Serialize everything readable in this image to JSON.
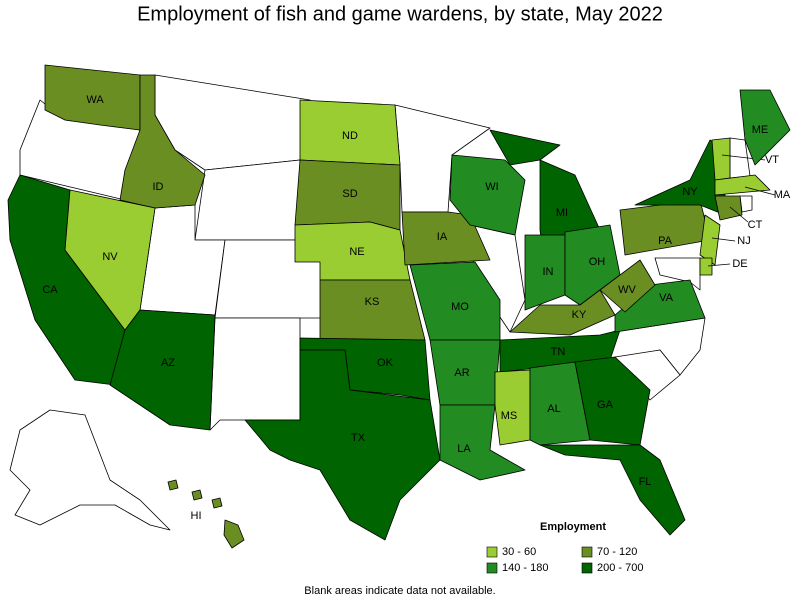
{
  "title": "Employment of fish and game wardens, by state, May 2022",
  "legend": {
    "title": "Employment",
    "items": [
      {
        "label": "30 - 60",
        "color": "#9acd32"
      },
      {
        "label": "70 - 120",
        "color": "#6b8e23"
      },
      {
        "label": "140 - 180",
        "color": "#228b22"
      },
      {
        "label": "200 - 700",
        "color": "#006400"
      }
    ]
  },
  "states": [
    {
      "label": "WA",
      "color": "#6b8e23"
    },
    {
      "label": "ID",
      "color": "#6b8e23"
    },
    {
      "label": "CA",
      "color": "#006400"
    },
    {
      "label": "NV",
      "color": "#9acd32"
    },
    {
      "label": "AZ",
      "color": "#006400"
    },
    {
      "label": "ND",
      "color": "#9acd32"
    },
    {
      "label": "SD",
      "color": "#6b8e23"
    },
    {
      "label": "NE",
      "color": "#9acd32"
    },
    {
      "label": "KS",
      "color": "#6b8e23"
    },
    {
      "label": "OK",
      "color": "#006400"
    },
    {
      "label": "TX",
      "color": "#006400"
    },
    {
      "label": "IA",
      "color": "#6b8e23"
    },
    {
      "label": "MO",
      "color": "#228b22"
    },
    {
      "label": "AR",
      "color": "#228b22"
    },
    {
      "label": "LA",
      "color": "#228b22"
    },
    {
      "label": "WI",
      "color": "#228b22"
    },
    {
      "label": "MI",
      "color": "#006400"
    },
    {
      "label": "IN",
      "color": "#228b22"
    },
    {
      "label": "OH",
      "color": "#228b22"
    },
    {
      "label": "KY",
      "color": "#6b8e23"
    },
    {
      "label": "TN",
      "color": "#006400"
    },
    {
      "label": "MS",
      "color": "#9acd32"
    },
    {
      "label": "AL",
      "color": "#228b22"
    },
    {
      "label": "GA",
      "color": "#006400"
    },
    {
      "label": "FL",
      "color": "#006400"
    },
    {
      "label": "VA",
      "color": "#228b22"
    },
    {
      "label": "WV",
      "color": "#6b8e23"
    },
    {
      "label": "PA",
      "color": "#6b8e23"
    },
    {
      "label": "NY",
      "color": "#006400"
    },
    {
      "label": "VT",
      "color": "#9acd32"
    },
    {
      "label": "ME",
      "color": "#228b22"
    },
    {
      "label": "MA",
      "color": "#9acd32"
    },
    {
      "label": "CT",
      "color": "#6b8e23"
    },
    {
      "label": "NJ",
      "color": "#9acd32"
    },
    {
      "label": "DE",
      "color": "#9acd32"
    },
    {
      "label": "HI",
      "color": "#6b8e23"
    }
  ],
  "note": "Blank areas indicate data not available."
}
